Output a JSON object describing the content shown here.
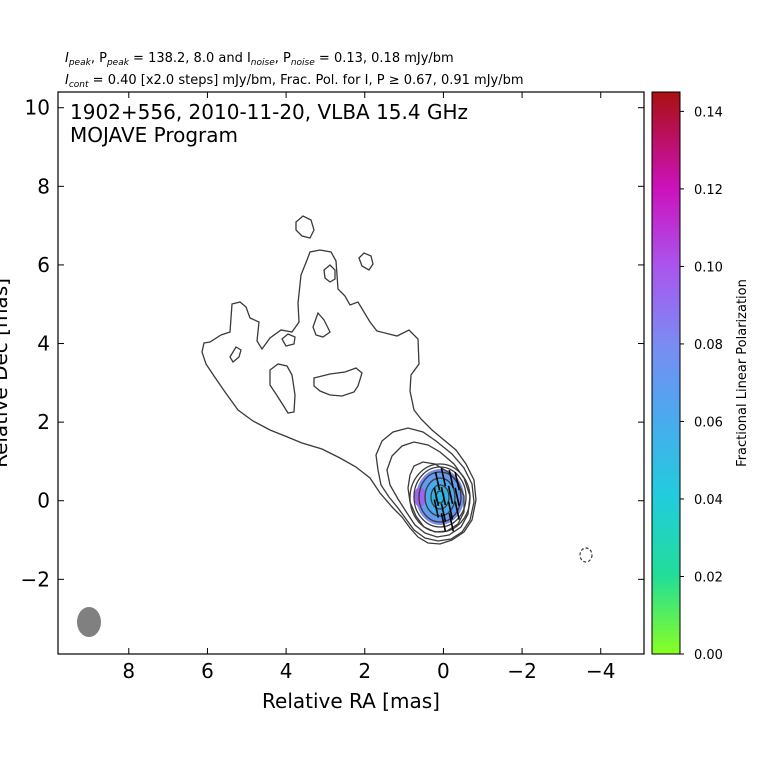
{
  "header": {
    "line1_prefix": "I",
    "line1_sub1": "peak",
    "line1_comma": ", P",
    "line1_sub2": "peak",
    "line1_mid": " = 138.2, 8.0 and I",
    "line1_sub3": "noise",
    "line1_comma2": ", P",
    "line1_sub4": "noise",
    "line1_tail": " = 0.13, 0.18 mJy/bm",
    "line2_prefix": "I",
    "line2_sub": "cont",
    "line2_mid": " = 0.40 [x2.0 steps] mJy/bm, Frac. Pol. for I, P ≥ 0.67, 0.91 mJy/bm"
  },
  "chart_data": {
    "type": "heatmap",
    "title_line1": "1902+556, 2010-11-20, VLBA 15.4 GHz",
    "title_line2": "MOJAVE Program",
    "xlabel": "Relative RA [mas]",
    "ylabel": "Relative Dec [mas]",
    "xlim": [
      9.8,
      -5.1
    ],
    "ylim": [
      -3.9,
      10.4
    ],
    "x_ticks": [
      8,
      6,
      4,
      2,
      0,
      -2,
      -4
    ],
    "x_tick_labels": [
      "8",
      "6",
      "4",
      "2",
      "0",
      "−2",
      "−4"
    ],
    "y_ticks": [
      -2,
      0,
      2,
      4,
      6,
      8,
      10
    ],
    "y_tick_labels": [
      "−2",
      "0",
      "2",
      "4",
      "6",
      "8",
      "10"
    ],
    "colorbar": {
      "label": "Fractional Linear Polarization",
      "range": [
        0.0,
        0.145
      ],
      "ticks": [
        0.0,
        0.02,
        0.04,
        0.06,
        0.08,
        0.1,
        0.12,
        0.14
      ],
      "tick_labels": [
        "0.00",
        "0.02",
        "0.04",
        "0.06",
        "0.08",
        "0.10",
        "0.12",
        "0.14"
      ],
      "colors": [
        "#88ff22",
        "#22dd99",
        "#22ccdd",
        "#4aaaee",
        "#7a8cf2",
        "#aa55ee",
        "#cc11bb",
        "#aa1010"
      ]
    },
    "contour_levels_mJy": [
      0.4,
      0.8,
      1.6,
      3.2,
      6.4,
      12.8,
      25.6,
      51.2,
      102.4
    ],
    "core_position": [
      0.0,
      0.0
    ],
    "negative_contour_position": [
      -3.65,
      -1.4
    ],
    "beam": {
      "position": [
        9.0,
        -3.1
      ],
      "major_mas": 0.65,
      "minor_mas": 0.55,
      "color": "#808080"
    },
    "polarization_peak_fraction": 0.08,
    "evpa_ticks": [
      [
        -0.35,
        0.5
      ],
      [
        -0.2,
        0.55
      ],
      [
        0.0,
        0.6
      ],
      [
        0.15,
        0.5
      ],
      [
        -0.35,
        0.1
      ],
      [
        -0.18,
        0.15
      ],
      [
        0.0,
        0.12
      ],
      [
        0.18,
        0.1
      ],
      [
        -0.35,
        -0.25
      ],
      [
        -0.18,
        -0.25
      ],
      [
        0.0,
        -0.3
      ],
      [
        0.18,
        -0.2
      ],
      [
        -0.2,
        -0.55
      ],
      [
        0.0,
        -0.55
      ]
    ]
  }
}
